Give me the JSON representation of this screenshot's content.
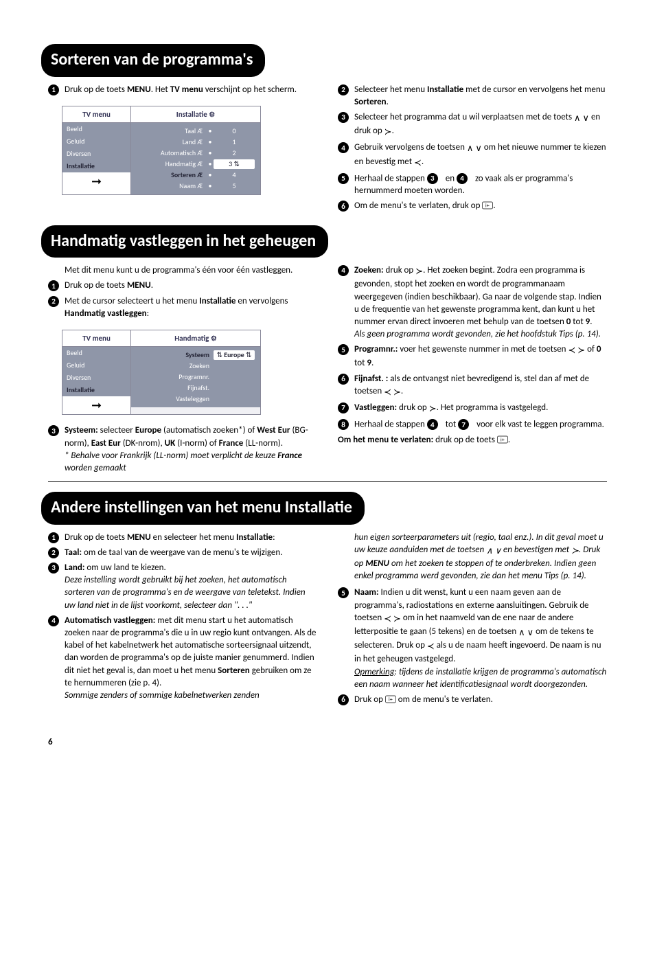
{
  "sections": {
    "s1": {
      "title": "Sorteren van de programma's"
    },
    "s2": {
      "title": "Handmatig vastleggen in het geheugen"
    },
    "s3": {
      "title": "Andere instellingen van het menu Installatie"
    }
  },
  "menu1": {
    "left_title": "TV menu",
    "left_items": [
      "Beeld",
      "Geluid",
      "Diversen",
      "Installatie"
    ],
    "left_selected_index": 3,
    "right_title": "Installatie",
    "rows": [
      {
        "label": "Taal",
        "mark": "Æ",
        "value": "0",
        "sel": false,
        "hl": false
      },
      {
        "label": "Land",
        "mark": "Æ",
        "value": "1",
        "sel": false,
        "hl": false
      },
      {
        "label": "Automatisch",
        "mark": "Æ",
        "value": "2",
        "sel": false,
        "hl": false
      },
      {
        "label": "Handmatig",
        "mark": "Æ",
        "value": "3",
        "sel": false,
        "hl": true
      },
      {
        "label": "Sorteren",
        "mark": "Æ",
        "value": "4",
        "sel": true,
        "hl": false
      },
      {
        "label": "Naam",
        "mark": "Æ",
        "value": "5",
        "sel": false,
        "hl": false
      }
    ]
  },
  "menu2": {
    "left_title": "TV menu",
    "left_items": [
      "Beeld",
      "Geluid",
      "Diversen",
      "Installatie"
    ],
    "left_selected_index": 3,
    "right_title": "Handmatig",
    "rows": [
      {
        "label": "Systeem",
        "value": "Europe",
        "sel": true,
        "hl": true
      },
      {
        "label": "Zoeken",
        "value": "",
        "sel": false,
        "hl": false
      },
      {
        "label": "Programnr.",
        "value": "",
        "sel": false,
        "hl": false
      },
      {
        "label": "Fijnafst.",
        "value": "",
        "sel": false,
        "hl": false
      },
      {
        "label": "Vasteleggen",
        "value": "",
        "sel": false,
        "hl": false
      }
    ]
  },
  "s1_items": {
    "i1": "Druk op de toets <b>MENU</b>. Het <b>TV menu</b> verschijnt op het scherm.",
    "i2": "Selecteer het menu <b>Installatie</b> met de cursor en vervolgens het menu <b>Sorteren</b>.",
    "i3": "Selecteer het programma dat u wil verplaatsen met de toets <span class='icon'>∧ ∨</span> en druk op <span class='icon'>≻</span>.",
    "i4": "Gebruik vervolgens de toetsen <span class='icon'>∧ ∨</span> om het nieuwe nummer te kiezen en bevestig met <span class='icon'>≺</span>.",
    "i5": "Herhaal de stappen <span class='num'>3</span> en <span class='num'>4</span> zo vaak als er programma's hernummerd moeten worden.",
    "i6": "Om de menu's te verlaten, druk op <svg class='iplus' viewBox='0 0 24 16'><rect x='0.5' y='0.5' width='23' height='15' rx='3' fill='none' stroke='#000'/><text x='12' y='12' text-anchor='middle' font-size='11' font-family='sans-serif'>i+</text></svg>."
  },
  "s2_left": {
    "intro": "Met dit menu kunt u de programma's één voor één vastleggen.",
    "i1": "Druk op de toets <b>MENU</b>.",
    "i2": "Met de cursor selecteert u het menu <b>Installatie</b> en vervolgens <b>Handmatig vastleggen</b>:",
    "i3a": "<b>Systeem:</b> selecteer <b>Europe</b> (automatisch zoeken*) of <b>West Eur</b> (BG-norm), <b>East Eur</b> (DK-nrom), <b>UK</b> (I-norm) of <b>France</b> (LL-norm).",
    "i3b": "* Behalve voor Frankrijk (LL-norm) moet verplicht de keuze <b>France</b> worden gemaakt"
  },
  "s2_right": {
    "i4a": "<b>Zoeken:</b> druk op <span class='icon'>≻</span>. Het zoeken begint. Zodra een programma is gevonden, stopt het zoeken en wordt de programmanaam weergegeven (indien beschikbaar). Ga naar de volgende stap. Indien u de frequentie van het gewenste programma kent, dan kunt u het nummer ervan direct invoeren met behulp van de toetsen <b>0</b> tot <b>9</b>.",
    "i4b": "Als geen programma wordt gevonden, zie het hoofdstuk Tips (p. 14).",
    "i5": "<b>Programnr.:</b> voer het gewenste nummer in met de toetsen <span class='icon'>≺ ≻</span> of <b>0</b> tot <b>9</b>.",
    "i6": "<b>Fijnafst. :</b> als de ontvangst niet bevredigend is, stel dan af met de toetsen <span class='icon'>≺ ≻</span>.",
    "i7": "<b>Vastleggen:</b> druk op <span class='icon'>≻</span>. Het programma is vastgelegd.",
    "i8": "Herhaal de stappen <span class='num'>4</span> tot <span class='num'>7</span> voor elk vast te leggen programma.",
    "out": "<b>Om het menu te verlaten:</b> druk op de toets <svg class='iplus' viewBox='0 0 24 16'><rect x='0.5' y='0.5' width='23' height='15' rx='3' fill='none' stroke='#000'/><text x='12' y='12' text-anchor='middle' font-size='11' font-family='sans-serif'>i+</text></svg>."
  },
  "s3_left": {
    "i1": "Druk op de toets <b>MENU</b> en selecteer het menu <b>Installatie</b>:",
    "i2": "<b>Taal:</b> om de taal van de weergave van de menu's te wijzigen.",
    "i3a": "<b>Land:</b> om uw land te kiezen.",
    "i3b": "Deze instelling wordt gebruikt bij het zoeken, het automatisch sorteren van de programma's en de weergave van teletekst. Indien uw land niet in de lijst voorkomt, selecteer dan \". . .\"",
    "i4a": "<b>Automatisch vastleggen:</b> met dit menu start u het automatisch zoeken naar de programma's die u in uw regio kunt ontvangen. Als de kabel of het kabelnetwerk het automatische sorteersignaal uitzendt, dan worden de programma's op de juiste manier genummerd. Indien dit niet het geval is, dan moet u het menu <b>Sorteren</b> gebruiken om ze te hernummeren (zie p. 4).",
    "i4b": "Sommige zenders of sommige kabelnetwerken zenden"
  },
  "s3_right": {
    "cont": "hun eigen sorteerparameters uit (regio, taal enz.). In dit geval moet u uw keuze aanduiden met de toetsen <span class='icon'>∧ ∨</span> en bevestigen met <span class='icon'>≻</span>. Druk op <b>MENU</b> om het zoeken te stoppen of te onderbreken. Indien geen enkel programma werd gevonden, zie dan het menu Tips (p. 14).",
    "i5a": "<b>Naam:</b> Indien u dit wenst, kunt u een naam geven aan de programma's, radiostations en externe aansluitingen. Gebruik de toetsen <span class='icon'>≺ ≻</span> om in het naamveld van de ene naar de andere letterpositie te gaan (5 tekens) en de toetsen <span class='icon'>∧ ∨</span> om de tekens te selecteren. Druk op <span class='icon'>≺</span> als u de naam heeft ingevoerd. De naam is nu in het geheugen vastgelegd.",
    "i5b": "<span class='u'>Opmerking</span>: tijdens de installatie krijgen de programma's automatisch een naam wanneer het identificatiesignaal wordt doorgezonden.",
    "i6": "Druk op <svg class='iplus' viewBox='0 0 24 16'><rect x='0.5' y='0.5' width='23' height='15' rx='3' fill='none' stroke='#000'/><text x='12' y='12' text-anchor='middle' font-size='11' font-family='sans-serif'>i+</text></svg> om de menu's te verlaten."
  },
  "page_number": "6"
}
